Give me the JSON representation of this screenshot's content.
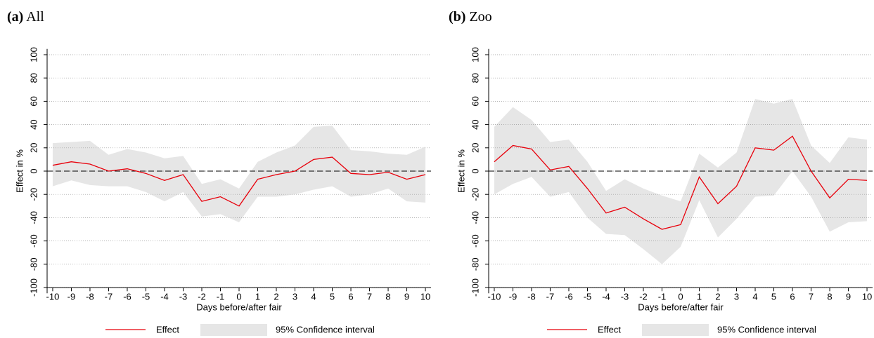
{
  "chart_data": [
    {
      "type": "line",
      "panel": "(a)",
      "title": "All",
      "x_label": "Days before/after fair",
      "y_label": "Effect in %",
      "x": [
        -10,
        -9,
        -8,
        -7,
        -6,
        -5,
        -4,
        -3,
        -2,
        -1,
        0,
        1,
        2,
        3,
        4,
        5,
        6,
        7,
        8,
        9,
        10
      ],
      "xlim": [
        -10.3,
        10.3
      ],
      "ylim": [
        -105,
        105
      ],
      "yticks": [
        -100,
        -80,
        -60,
        -40,
        -20,
        0,
        20,
        40,
        60,
        80,
        100
      ],
      "grid": true,
      "reference_line": 0,
      "series": [
        {
          "name": "Effect",
          "color": "#e8000b",
          "values": [
            5,
            8,
            6,
            0,
            2,
            -2,
            -8,
            -3,
            -26,
            -22,
            -30,
            -7,
            -3,
            0,
            10,
            12,
            -2,
            -3,
            -1,
            -7,
            -3
          ]
        }
      ],
      "band": {
        "name": "95% Confidence interval",
        "color": "#e6e6e6",
        "upper": [
          24,
          25,
          26,
          14,
          19,
          16,
          11,
          13,
          -11,
          -7,
          -15,
          8,
          16,
          22,
          38,
          39,
          18,
          17,
          15,
          14,
          21
        ],
        "lower": [
          -13,
          -8,
          -12,
          -13,
          -13,
          -18,
          -26,
          -18,
          -39,
          -37,
          -44,
          -22,
          -22,
          -20,
          -16,
          -13,
          -22,
          -20,
          -15,
          -26,
          -27
        ]
      }
    },
    {
      "type": "line",
      "panel": "(b)",
      "title": "Zoo",
      "x_label": "Days before/after fair",
      "y_label": "Effect in %",
      "x": [
        -10,
        -9,
        -8,
        -7,
        -6,
        -5,
        -4,
        -3,
        -2,
        -1,
        0,
        1,
        2,
        3,
        4,
        5,
        6,
        7,
        8,
        9,
        10
      ],
      "xlim": [
        -10.3,
        10.3
      ],
      "ylim": [
        -105,
        105
      ],
      "yticks": [
        -100,
        -80,
        -60,
        -40,
        -20,
        0,
        20,
        40,
        60,
        80,
        100
      ],
      "grid": true,
      "reference_line": 0,
      "series": [
        {
          "name": "Effect",
          "color": "#e8000b",
          "values": [
            8,
            22,
            19,
            1,
            4,
            -15,
            -36,
            -31,
            -41,
            -50,
            -46,
            -5,
            -28,
            -13,
            20,
            18,
            30,
            0,
            -23,
            -7,
            -8
          ]
        }
      ],
      "band": {
        "name": "95% Confidence interval",
        "color": "#e6e6e6",
        "upper": [
          38,
          55,
          44,
          25,
          27,
          8,
          -17,
          -7,
          -15,
          -21,
          -26,
          15,
          3,
          16,
          62,
          58,
          62,
          22,
          7,
          29,
          27
        ],
        "lower": [
          -20,
          -11,
          -5,
          -22,
          -18,
          -40,
          -54,
          -55,
          -67,
          -80,
          -65,
          -25,
          -57,
          -41,
          -22,
          -21,
          0,
          -22,
          -52,
          -44,
          -43
        ]
      }
    }
  ]
}
